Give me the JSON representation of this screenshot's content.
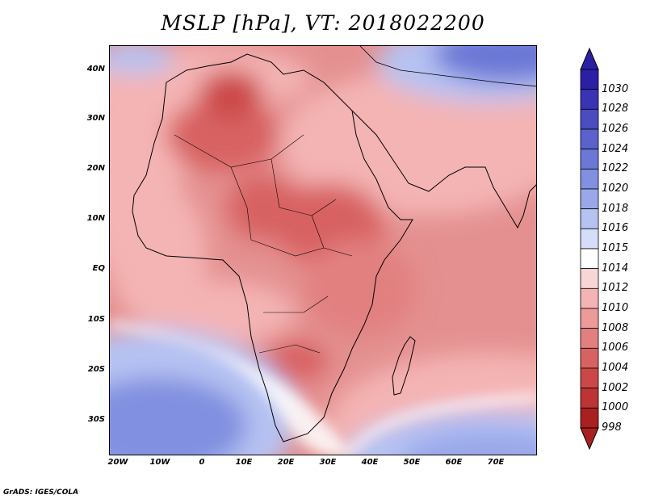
{
  "title": "MSLP [hPa], VT: 2018022200",
  "footer": "GrADS: IGES/COLA",
  "lat_labels": [
    "40N",
    "30N",
    "20N",
    "10N",
    "EQ",
    "10S",
    "20S",
    "30S"
  ],
  "lon_labels": [
    "20W",
    "10W",
    "0",
    "10E",
    "20E",
    "30E",
    "40E",
    "50E",
    "60E",
    "70E"
  ],
  "colorbar": {
    "levels": [
      "1030",
      "1028",
      "1026",
      "1024",
      "1022",
      "1020",
      "1018",
      "1016",
      "1015",
      "1014",
      "1012",
      "1010",
      "1008",
      "1006",
      "1004",
      "1002",
      "1000",
      "998"
    ],
    "colors": [
      "#2b1fa6",
      "#3a34b4",
      "#4a4cc0",
      "#5b62cc",
      "#6c78d6",
      "#8190e0",
      "#9aa8ea",
      "#b6c2f2",
      "#d6ddf8",
      "#ffffff",
      "#f9d6d6",
      "#f4b4b4",
      "#ec9a9a",
      "#e28080",
      "#d86262",
      "#cc4848",
      "#bd3434",
      "#a82020"
    ]
  },
  "fields": {
    "background": "#e49090"
  }
}
